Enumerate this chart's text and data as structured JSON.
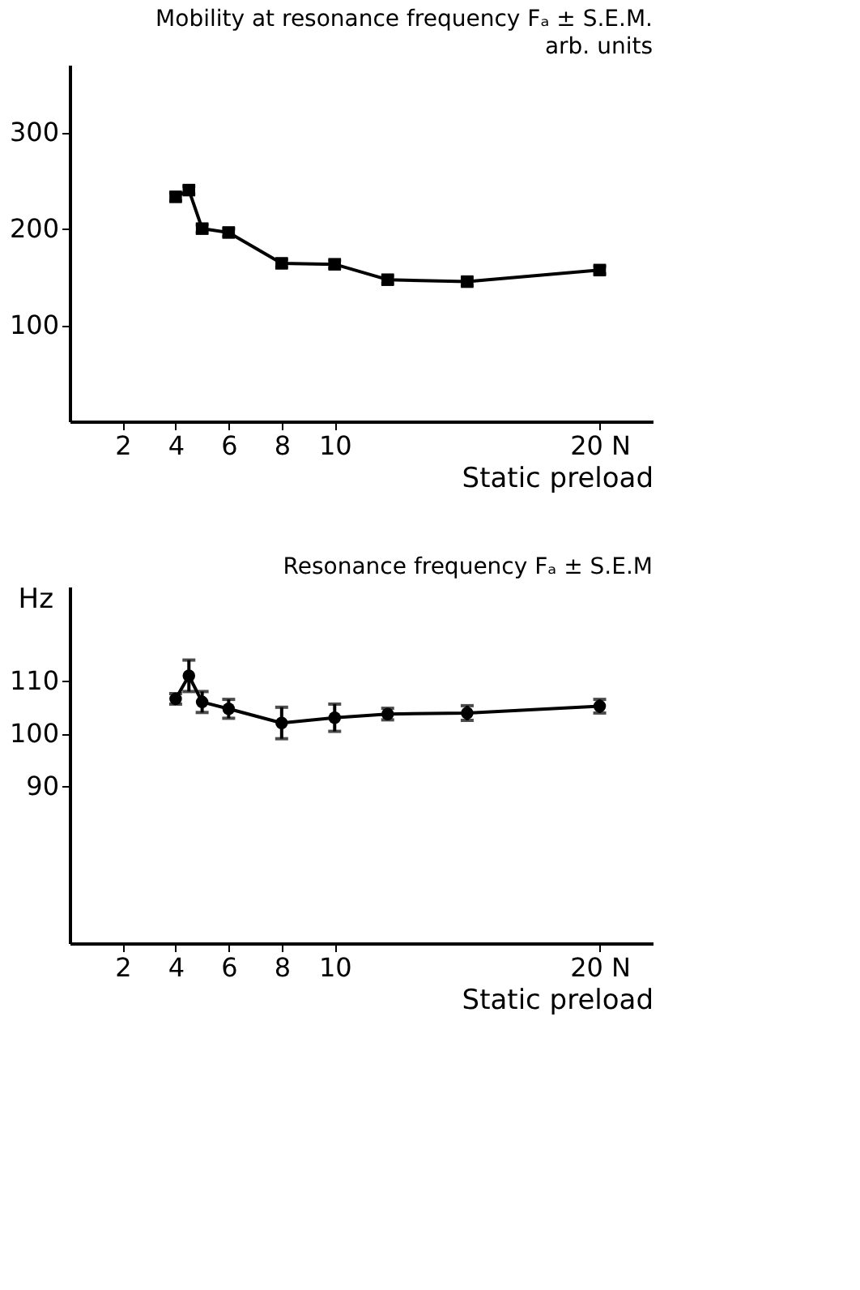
{
  "chart_data": [
    {
      "type": "line",
      "title": "Mobility at resonance frequency Fₐ ± S.E.M.",
      "subtitle": "arb. units",
      "xlabel": "Static preload",
      "x": [
        4,
        4.5,
        5,
        6,
        8,
        10,
        12,
        15,
        20
      ],
      "series": [
        {
          "color": "#000000",
          "values": [
            233,
            240,
            200,
            196,
            164,
            163,
            147,
            145,
            157
          ],
          "errors": [
            4,
            4,
            4,
            4,
            4,
            4,
            4,
            4,
            4
          ]
        }
      ],
      "xlim": [
        0,
        22
      ],
      "xticks": [
        2,
        4,
        6,
        8,
        10,
        {
          "value": 20,
          "label": "20 N"
        }
      ],
      "ylim": [
        0,
        370
      ],
      "yticks": [
        100,
        200,
        300
      ],
      "grid": false,
      "marker": "square",
      "line_style": "solid"
    },
    {
      "type": "line",
      "title": "Resonance frequency Fₐ ± S.E.M",
      "xlabel": "Static preload",
      "ylabel": "Hz",
      "x": [
        4,
        4.5,
        5,
        6,
        8,
        10,
        12,
        15,
        20
      ],
      "series": [
        {
          "color": "#000000",
          "values": [
            106.6,
            111,
            106,
            104.7,
            102,
            103,
            103.7,
            103.9,
            105.2
          ],
          "errors": [
            1,
            3,
            2,
            1.8,
            3,
            2.6,
            1.1,
            1.4,
            1.3
          ]
        }
      ],
      "xlim": [
        0,
        22
      ],
      "xticks": [
        2,
        4,
        6,
        8,
        10,
        {
          "value": 20,
          "label": "20 N"
        }
      ],
      "ylim": [
        60,
        128
      ],
      "yticks": [
        90,
        100,
        110
      ],
      "grid": false,
      "marker": "circle",
      "line_style": "solid"
    }
  ]
}
